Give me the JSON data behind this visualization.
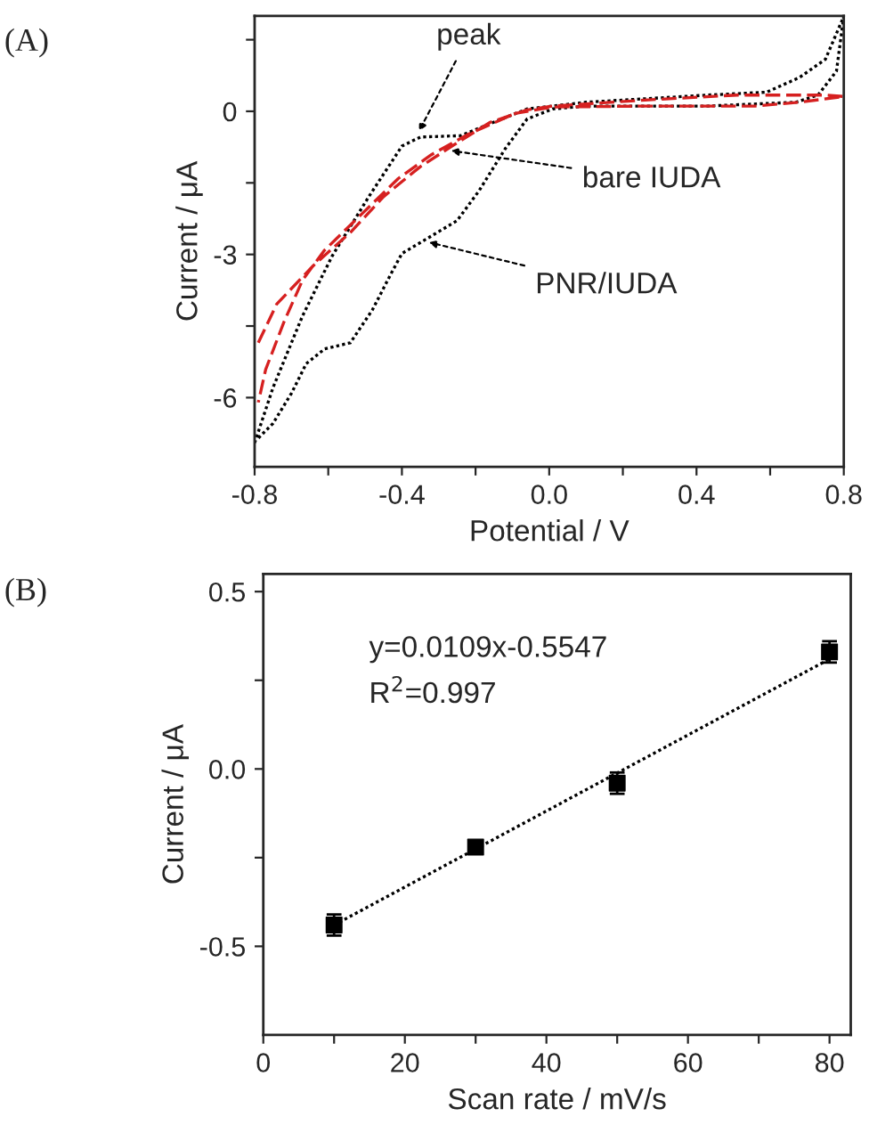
{
  "chart_data": [
    {
      "type": "line",
      "title": "(A)",
      "xlabel": "Potential / V",
      "ylabel": "Current / μA",
      "series": [
        {
          "color": "#000000",
          "line_style": "dotted",
          "x": [
            -0.8,
            -0.75,
            -0.67,
            -0.59,
            -0.49,
            -0.4,
            -0.35,
            -0.24,
            -0.19,
            -0.06,
            0.1,
            0.43,
            0.59,
            0.68,
            0.75,
            0.8,
            0.78,
            0.73,
            0.67,
            0.43,
            0.1,
            0.01,
            -0.06,
            -0.12,
            -0.19,
            -0.25,
            -0.33,
            -0.4,
            -0.43,
            -0.48,
            -0.54,
            -0.61,
            -0.66,
            -0.7,
            -0.75,
            -0.79
          ],
          "values": [
            -6.95,
            -5.79,
            -4.29,
            -3.04,
            -1.79,
            -0.73,
            -0.54,
            -0.51,
            -0.35,
            0.05,
            0.19,
            0.34,
            0.4,
            0.71,
            1.09,
            1.99,
            0.84,
            0.34,
            0.19,
            0.11,
            0.11,
            0.05,
            -0.16,
            -0.79,
            -1.66,
            -2.29,
            -2.66,
            -2.98,
            -3.41,
            -4.16,
            -4.85,
            -4.98,
            -5.29,
            -5.91,
            -6.54,
            -6.85
          ]
        },
        {
          "color": "#d62020",
          "line_style": "dashed",
          "x": [
            -0.79,
            -0.74,
            -0.64,
            -0.54,
            -0.45,
            -0.35,
            -0.25,
            -0.16,
            -0.06,
            0.01,
            0.27,
            0.51,
            0.75,
            0.8,
            0.68,
            0.56,
            0.27,
            0.01,
            -0.09,
            -0.22,
            -0.32,
            -0.41,
            -0.51,
            -0.61,
            -0.67,
            -0.72,
            -0.77,
            -0.79
          ],
          "values": [
            -4.85,
            -4.04,
            -3.23,
            -2.54,
            -1.79,
            -1.16,
            -0.66,
            -0.23,
            0.03,
            0.11,
            0.24,
            0.34,
            0.34,
            0.31,
            0.19,
            0.11,
            0.11,
            0.09,
            -0.04,
            -0.48,
            -0.91,
            -1.41,
            -2.16,
            -2.91,
            -3.54,
            -4.41,
            -5.41,
            -6.1
          ]
        }
      ],
      "xlim": [
        -0.8,
        0.8
      ],
      "ylim": [
        -7.45,
        2
      ],
      "xticks": [
        -0.8,
        {
          "value": -0.6,
          "label": null
        },
        -0.4,
        {
          "value": -0.2,
          "label": null
        },
        {
          "value": 0,
          "label": "0.0"
        },
        {
          "value": 0.2,
          "label": null
        },
        0.4,
        {
          "value": 0.6,
          "label": null
        },
        0.8
      ],
      "yticks": [
        -6,
        {
          "value": -4.5,
          "label": null
        },
        -3,
        {
          "value": -1.5,
          "label": null
        },
        0,
        {
          "value": 1.5,
          "label": null
        }
      ],
      "annotations": [
        {
          "text": "peak",
          "x": -0.36,
          "y": -0.51
        },
        {
          "text": "bare IUDA",
          "x": -0.28,
          "y": -0.81
        },
        {
          "text": "PNR/IUDA",
          "x": -0.34,
          "y": -2.72
        }
      ],
      "grid": false,
      "legend": false
    },
    {
      "type": "scatter",
      "title": "(B)",
      "xlabel": "Scan rate / mV/s",
      "ylabel": "Current / μA",
      "series": [
        {
          "type": "scatter",
          "color": "#000000",
          "marker": "square",
          "x": [
            10,
            30,
            50,
            80
          ],
          "values": [
            -0.44,
            -0.22,
            -0.04,
            0.33
          ],
          "errors": [
            0.03,
            0.015,
            0.03,
            0.03
          ]
        },
        {
          "type": "line",
          "color": "#000000",
          "line_style": "dotted",
          "x": [
            10,
            80
          ],
          "values": [
            -0.44,
            0.31
          ]
        }
      ],
      "xlim": [
        0,
        83
      ],
      "ylim": [
        -0.75,
        0.55
      ],
      "xticks": [
        0,
        {
          "value": 10,
          "label": null
        },
        20,
        {
          "value": 30,
          "label": null
        },
        40,
        {
          "value": 50,
          "label": null
        },
        60,
        {
          "value": 70,
          "label": null
        },
        80
      ],
      "yticks": [
        {
          "value": -0.5,
          "label": "-0.5"
        },
        {
          "value": -0.25,
          "label": null
        },
        {
          "value": 0,
          "label": "0.0"
        },
        {
          "value": 0.25,
          "label": null
        },
        0.5
      ],
      "annotations": [
        "y=0.0109x-0.5547",
        "R$^{2}$=0.997"
      ],
      "grid": false,
      "legend": false
    }
  ]
}
